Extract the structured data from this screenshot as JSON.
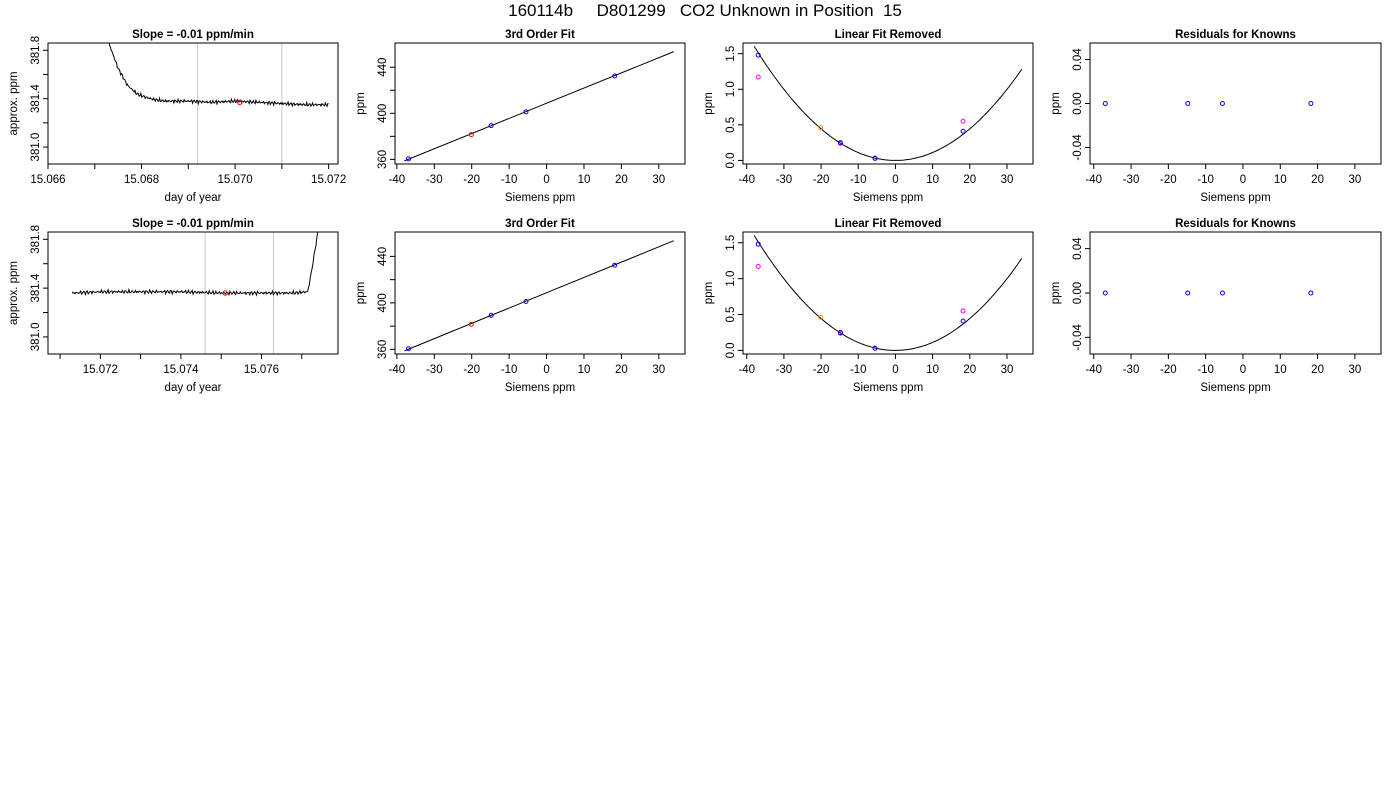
{
  "page": {
    "title": "160114b     D801299   CO2 Unknown in Position  15"
  },
  "colors": {
    "axis": "#000000",
    "trace": "#000000",
    "vline": "#c8c8c8",
    "known_point": "#0000ff",
    "unknown_point": "#ff0000",
    "secondary_point": "#ff00ff",
    "highlight_point": "#ff8c00"
  },
  "chart_data": [
    {
      "panel": "row1-time-series",
      "type": "line",
      "title": "Slope =  -0.01  ppm/min",
      "xlabel": "day of year",
      "ylabel": "approx. ppm",
      "xlim": [
        15.066,
        15.0722
      ],
      "ylim": [
        380.86,
        381.86
      ],
      "xticks": [
        15.066,
        15.067,
        15.068,
        15.069,
        15.07,
        15.071,
        15.072
      ],
      "xticklabels": [
        "15.066",
        "",
        "15.068",
        "",
        "15.070",
        "",
        "15.072"
      ],
      "yticks": [
        381.0,
        381.2,
        381.4,
        381.6,
        381.8
      ],
      "yticklabels": [
        "381.0",
        "",
        "381.4",
        "",
        "381.8"
      ],
      "vlines": [
        15.0692,
        15.071
      ],
      "trace": {
        "x": [
          15.0673,
          15.0675,
          15.0677,
          15.0679,
          15.0681,
          15.0683,
          15.0685,
          15.069,
          15.0695,
          15.07,
          15.0705,
          15.071,
          15.0715,
          15.072
        ],
        "y": [
          381.86,
          381.65,
          381.51,
          381.44,
          381.41,
          381.39,
          381.38,
          381.38,
          381.37,
          381.38,
          381.37,
          381.36,
          381.35,
          381.35
        ]
      },
      "marker": {
        "x": [
          15.0701
        ],
        "y": [
          381.37
        ]
      }
    },
    {
      "panel": "row1-fit",
      "type": "scatter",
      "title": "3rd Order Fit",
      "xlabel": "Siemens ppm",
      "ylabel": "ppm",
      "xlim": [
        -40.5,
        37
      ],
      "ylim": [
        356,
        461
      ],
      "xticks": [
        -40,
        -30,
        -20,
        -10,
        0,
        10,
        20,
        30
      ],
      "yticks": [
        360,
        380,
        400,
        420,
        440
      ],
      "yticklabels": [
        "360",
        "",
        "400",
        "",
        "440"
      ],
      "line": {
        "x": [
          -38,
          34
        ],
        "y": [
          358.7,
          453.5
        ]
      },
      "knowns": {
        "x": [
          -36.9,
          -14.8,
          -5.5,
          18.2
        ],
        "y": [
          360.5,
          389.3,
          401.2,
          432.4
        ]
      },
      "unknown": {
        "x": [
          -20.1
        ],
        "y": [
          381.5
        ]
      }
    },
    {
      "panel": "row1-residual-curve",
      "type": "scatter",
      "title": "Linear Fit Removed",
      "xlabel": "Siemens ppm",
      "ylabel": "ppm",
      "xlim": [
        -41,
        37
      ],
      "ylim": [
        -0.05,
        1.65
      ],
      "xticks": [
        -40,
        -30,
        -20,
        -10,
        0,
        10,
        20,
        30
      ],
      "yticks": [
        0,
        0.5,
        1,
        1.5
      ],
      "yticklabels": [
        "0.0",
        "0.5",
        "1.0",
        "1.5"
      ],
      "curve": {
        "vertex": 0,
        "a": 0.00111,
        "x_range": [
          -38,
          34
        ]
      },
      "knowns": {
        "x": [
          -36.9,
          -14.8,
          -5.5,
          18.2
        ],
        "y": [
          1.48,
          0.25,
          0.03,
          0.41
        ]
      },
      "secondary": {
        "x": [
          -36.9,
          -14.8,
          -5.5,
          18.2
        ],
        "y": [
          1.17,
          0.24,
          0.03,
          0.55
        ]
      },
      "highlight": {
        "x": [
          -20.1
        ],
        "y": [
          0.46
        ]
      }
    },
    {
      "panel": "row1-residuals",
      "type": "scatter",
      "title": "Residuals for Knowns",
      "xlabel": "Siemens ppm",
      "ylabel": "ppm",
      "xlim": [
        -41,
        37
      ],
      "ylim": [
        -0.055,
        0.055
      ],
      "xticks": [
        -40,
        -30,
        -20,
        -10,
        0,
        10,
        20,
        30
      ],
      "yticks": [
        -0.04,
        0,
        0.04
      ],
      "yticklabels": [
        "-0.04",
        "0.00",
        "0.04"
      ],
      "knowns": {
        "x": [
          -36.9,
          -14.8,
          -5.5,
          18.2
        ],
        "y": [
          0,
          0,
          0,
          0
        ]
      }
    },
    {
      "panel": "row2-time-series",
      "type": "line",
      "title": "Slope =  -0.01  ppm/min",
      "xlabel": "day of year",
      "ylabel": "approx. ppm",
      "xlim": [
        15.0707,
        15.0779
      ],
      "ylim": [
        380.86,
        381.86
      ],
      "xticks": [
        15.071,
        15.072,
        15.073,
        15.074,
        15.075,
        15.076,
        15.077
      ],
      "xticklabels": [
        "",
        "15.072",
        "",
        "15.074",
        "",
        "15.076",
        ""
      ],
      "yticks": [
        381.0,
        381.2,
        381.4,
        381.6,
        381.8
      ],
      "yticklabels": [
        "381.0",
        "",
        "381.4",
        "",
        "381.8"
      ],
      "vlines": [
        15.0746,
        15.0763
      ],
      "trace": {
        "x": [
          15.0713,
          15.072,
          15.073,
          15.074,
          15.075,
          15.076,
          15.0768,
          15.07715,
          15.07725,
          15.0774
        ],
        "y": [
          381.36,
          381.37,
          381.37,
          381.37,
          381.36,
          381.36,
          381.36,
          381.37,
          381.55,
          381.86
        ]
      },
      "marker": {
        "x": [
          15.0751
        ],
        "y": [
          381.36
        ]
      }
    },
    {
      "panel": "row2-fit",
      "type": "scatter",
      "title": "3rd Order Fit",
      "xlabel": "Siemens ppm",
      "ylabel": "ppm",
      "xlim": [
        -40.5,
        37
      ],
      "ylim": [
        356,
        461
      ],
      "xticks": [
        -40,
        -30,
        -20,
        -10,
        0,
        10,
        20,
        30
      ],
      "yticks": [
        360,
        380,
        400,
        420,
        440
      ],
      "yticklabels": [
        "360",
        "",
        "400",
        "",
        "440"
      ],
      "line": {
        "x": [
          -38,
          34
        ],
        "y": [
          358.7,
          453.5
        ]
      },
      "knowns": {
        "x": [
          -36.9,
          -14.8,
          -5.5,
          18.2
        ],
        "y": [
          360.5,
          389.3,
          401.2,
          432.4
        ]
      },
      "unknown": {
        "x": [
          -20.1
        ],
        "y": [
          381.5
        ]
      }
    },
    {
      "panel": "row2-residual-curve",
      "type": "scatter",
      "title": "Linear Fit Removed",
      "xlabel": "Siemens ppm",
      "ylabel": "ppm",
      "xlim": [
        -41,
        37
      ],
      "ylim": [
        -0.05,
        1.65
      ],
      "xticks": [
        -40,
        -30,
        -20,
        -10,
        0,
        10,
        20,
        30
      ],
      "yticks": [
        0,
        0.5,
        1,
        1.5
      ],
      "yticklabels": [
        "0.0",
        "0.5",
        "1.0",
        "1.5"
      ],
      "curve": {
        "vertex": 0,
        "a": 0.00111,
        "x_range": [
          -38,
          34
        ]
      },
      "knowns": {
        "x": [
          -36.9,
          -14.8,
          -5.5,
          18.2
        ],
        "y": [
          1.48,
          0.25,
          0.03,
          0.41
        ]
      },
      "secondary": {
        "x": [
          -36.9,
          -14.8,
          -5.5,
          18.2
        ],
        "y": [
          1.17,
          0.24,
          0.03,
          0.55
        ]
      },
      "highlight": {
        "x": [
          -20.1
        ],
        "y": [
          0.46
        ]
      }
    },
    {
      "panel": "row2-residuals",
      "type": "scatter",
      "title": "Residuals for Knowns",
      "xlabel": "Siemens ppm",
      "ylabel": "ppm",
      "xlim": [
        -41,
        37
      ],
      "ylim": [
        -0.055,
        0.055
      ],
      "xticks": [
        -40,
        -30,
        -20,
        -10,
        0,
        10,
        20,
        30
      ],
      "yticks": [
        -0.04,
        0,
        0.04
      ],
      "yticklabels": [
        "-0.04",
        "0.00",
        "0.04"
      ],
      "knowns": {
        "x": [
          -36.9,
          -14.8,
          -5.5,
          18.2
        ],
        "y": [
          0,
          0,
          0,
          0
        ]
      }
    }
  ]
}
